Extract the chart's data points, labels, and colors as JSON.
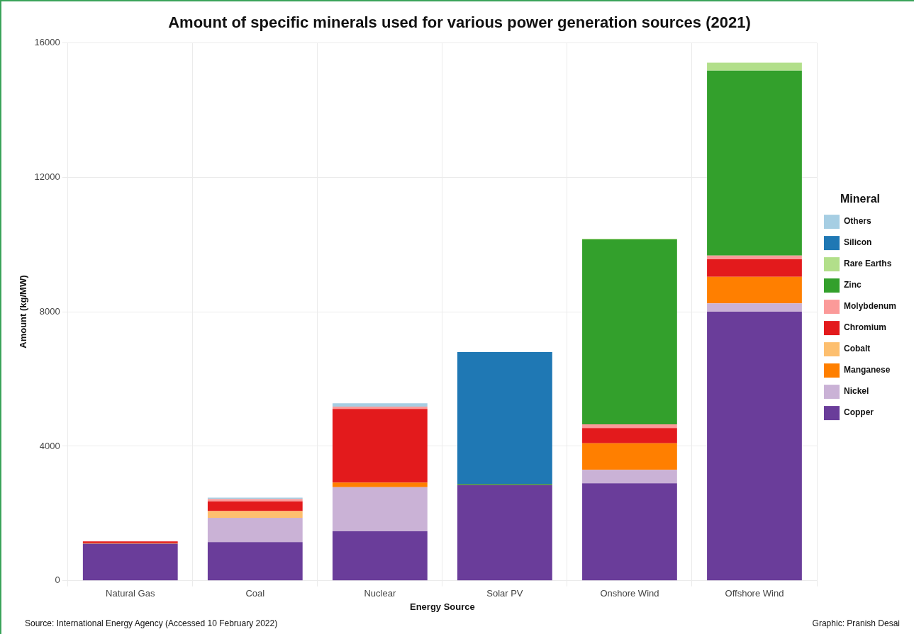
{
  "chart_data": {
    "type": "bar",
    "title": "Amount of specific minerals used for various power generation sources (2021)",
    "xlabel": "Energy Source",
    "ylabel": "Amount (kg/MW)",
    "legend_title": "Mineral",
    "categories": [
      "Natural Gas",
      "Coal",
      "Nuclear",
      "Solar PV",
      "Onshore Wind",
      "Offshore Wind"
    ],
    "stacked": true,
    "series": [
      {
        "name": "Copper",
        "color": "#6a3d9a",
        "values": [
          1100,
          1150,
          1470,
          2850,
          2900,
          8000
        ]
      },
      {
        "name": "Nickel",
        "color": "#cab2d6",
        "values": [
          null,
          720,
          1310,
          null,
          400,
          250
        ]
      },
      {
        "name": "Manganese",
        "color": "#ff7f00",
        "values": [
          20,
          null,
          140,
          null,
          790,
          790
        ]
      },
      {
        "name": "Cobalt",
        "color": "#fdbf6f",
        "values": [
          null,
          200,
          null,
          null,
          null,
          null
        ]
      },
      {
        "name": "Chromium",
        "color": "#e31a1c",
        "values": [
          50,
          290,
          2190,
          null,
          450,
          520
        ]
      },
      {
        "name": "Molybdenum",
        "color": "#fb9a99",
        "values": [
          null,
          70,
          70,
          null,
          110,
          110
        ]
      },
      {
        "name": "Zinc",
        "color": "#33a02c",
        "values": [
          null,
          null,
          null,
          30,
          5500,
          5500
        ]
      },
      {
        "name": "Rare Earths",
        "color": "#b2df8a",
        "values": [
          null,
          null,
          null,
          null,
          20,
          240
        ]
      },
      {
        "name": "Silicon",
        "color": "#1f78b4",
        "values": [
          null,
          null,
          null,
          3920,
          null,
          null
        ]
      },
      {
        "name": "Others",
        "color": "#a6cee3",
        "values": [
          null,
          40,
          100,
          null,
          null,
          null
        ]
      }
    ],
    "ylim": [
      0,
      16000
    ],
    "yticks": [
      0,
      4000,
      8000,
      12000,
      16000
    ],
    "grid": true,
    "legend": "right",
    "annotations": [
      "Source: International Energy Agency (Accessed 10 February 2022)",
      "Graphic: Pranish Desai"
    ]
  }
}
